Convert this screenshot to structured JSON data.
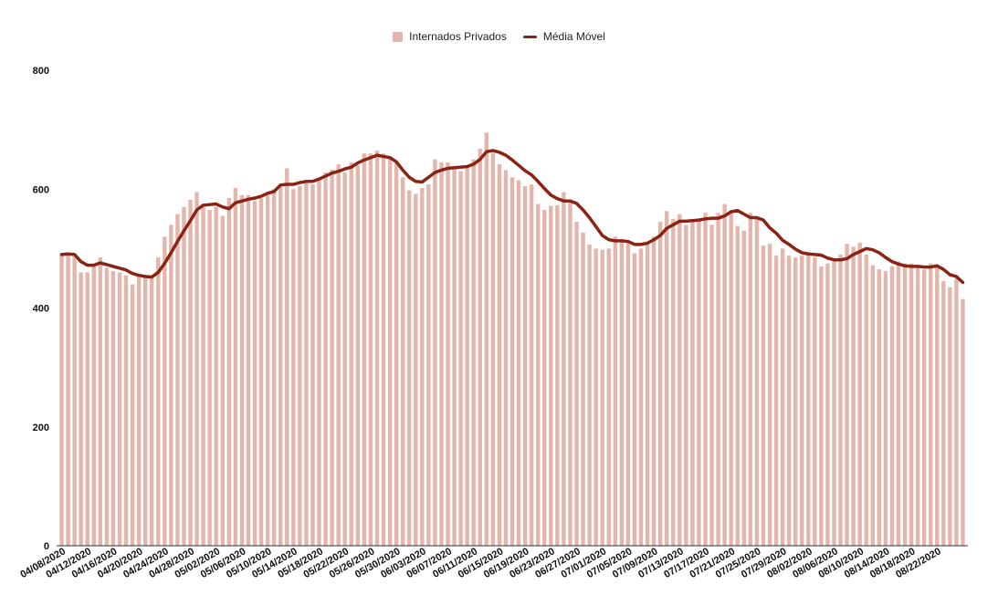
{
  "chart_data": {
    "type": "bar",
    "title": "",
    "xlabel": "",
    "ylabel": "",
    "ylim": [
      0,
      800
    ],
    "yticks": [
      0,
      200,
      400,
      600,
      800
    ],
    "grid": false,
    "legend_position": "top-center",
    "start_date": "04/08/2020",
    "x_tick_labels": [
      "04/08/2020",
      "04/12/2020",
      "04/16/2020",
      "04/20/2020",
      "04/24/2020",
      "04/28/2020",
      "05/02/2020",
      "05/06/2020",
      "05/10/2020",
      "05/14/2020",
      "05/18/2020",
      "05/22/2020",
      "05/26/2020",
      "05/30/2020",
      "06/03/2020",
      "06/07/2020",
      "06/11/2020",
      "06/15/2020",
      "06/19/2020",
      "06/23/2020",
      "06/27/2020",
      "07/01/2020",
      "07/05/2020",
      "07/09/2020",
      "07/13/2020",
      "07/17/2020",
      "07/21/2020",
      "07/25/2020",
      "07/29/2020",
      "08/02/2020",
      "08/06/2020",
      "08/10/2020",
      "08/14/2020",
      "08/18/2020",
      "08/22/2020"
    ],
    "series": [
      {
        "name": "Internados Privados",
        "kind": "bar",
        "color": "#e4b5ab",
        "values": [
          490,
          492,
          487,
          460,
          460,
          470,
          485,
          468,
          462,
          460,
          455,
          440,
          453,
          452,
          452,
          485,
          520,
          540,
          558,
          570,
          582,
          595,
          570,
          565,
          570,
          555,
          585,
          602,
          590,
          590,
          580,
          585,
          590,
          600,
          605,
          635,
          600,
          605,
          610,
          608,
          615,
          628,
          633,
          642,
          628,
          645,
          640,
          660,
          660,
          665,
          660,
          650,
          645,
          620,
          598,
          592,
          602,
          608,
          650,
          645,
          645,
          635,
          630,
          640,
          650,
          668,
          695,
          660,
          642,
          632,
          620,
          615,
          605,
          608,
          575,
          565,
          572,
          573,
          595,
          578,
          545,
          527,
          507,
          500,
          498,
          500,
          520,
          515,
          512,
          492,
          500,
          512,
          520,
          545,
          563,
          550,
          558,
          540,
          545,
          549,
          560,
          540,
          560,
          575,
          560,
          538,
          530,
          560,
          550,
          505,
          508,
          488,
          500,
          488,
          485,
          488,
          490,
          485,
          470,
          475,
          480,
          490,
          508,
          503,
          510,
          490,
          472,
          465,
          462,
          470,
          478,
          475,
          475,
          470,
          465,
          475,
          472,
          445,
          435,
          450,
          415
        ]
      },
      {
        "name": "Média Móvel",
        "kind": "line",
        "color": "#8b2314",
        "values": [
          490,
          491,
          490,
          478,
          472,
          472,
          476,
          473,
          470,
          467,
          464,
          458,
          455,
          453,
          452,
          460,
          475,
          493,
          512,
          530,
          547,
          565,
          573,
          574,
          575,
          570,
          567,
          577,
          580,
          583,
          585,
          588,
          593,
          596,
          607,
          608,
          608,
          611,
          613,
          613,
          617,
          622,
          627,
          630,
          634,
          637,
          644,
          649,
          653,
          657,
          655,
          653,
          646,
          632,
          620,
          613,
          612,
          620,
          628,
          632,
          635,
          636,
          637,
          638,
          642,
          650,
          663,
          665,
          662,
          657,
          649,
          640,
          631,
          624,
          613,
          601,
          590,
          584,
          580,
          580,
          576,
          565,
          552,
          537,
          522,
          515,
          513,
          513,
          512,
          507,
          507,
          509,
          515,
          522,
          534,
          540,
          546,
          546,
          547,
          548,
          550,
          551,
          551,
          555,
          562,
          564,
          558,
          552,
          552,
          548,
          535,
          526,
          514,
          507,
          499,
          493,
          491,
          490,
          489,
          484,
          481,
          481,
          483,
          490,
          495,
          500,
          498,
          493,
          485,
          478,
          474,
          471,
          470,
          470,
          469,
          469,
          471,
          465,
          456,
          453,
          443
        ]
      }
    ]
  }
}
